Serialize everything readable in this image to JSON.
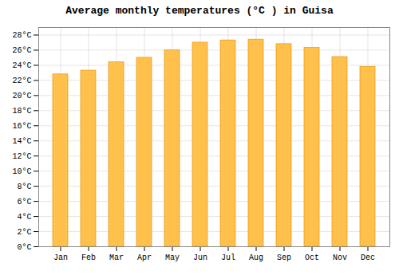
{
  "chart_data": {
    "type": "bar",
    "title": "Average monthly temperatures (°C ) in Guisa",
    "categories": [
      "Jan",
      "Feb",
      "Mar",
      "Apr",
      "May",
      "Jun",
      "Jul",
      "Aug",
      "Sep",
      "Oct",
      "Nov",
      "Dec"
    ],
    "values": [
      22.8,
      23.3,
      24.4,
      25.0,
      26.0,
      27.0,
      27.3,
      27.4,
      26.8,
      26.3,
      25.1,
      23.8
    ],
    "color": "#FFC04C",
    "ylim": [
      0,
      29
    ],
    "yticks": [
      {
        "value": 0,
        "label": "0°C"
      },
      {
        "value": 2,
        "label": "2°C"
      },
      {
        "value": 4,
        "label": "4°C"
      },
      {
        "value": 6,
        "label": "6°C"
      },
      {
        "value": 8,
        "label": "8°C"
      },
      {
        "value": 10,
        "label": "10°C"
      },
      {
        "value": 12,
        "label": "12°C"
      },
      {
        "value": 14,
        "label": "14°C"
      },
      {
        "value": 16,
        "label": "16°C"
      },
      {
        "value": 18,
        "label": "18°C"
      },
      {
        "value": 20,
        "label": "20°C"
      },
      {
        "value": 22,
        "label": "22°C"
      },
      {
        "value": 24,
        "label": "24°C"
      },
      {
        "value": 26,
        "label": "26°C"
      },
      {
        "value": 28,
        "label": "28°C"
      }
    ],
    "grid": true
  }
}
